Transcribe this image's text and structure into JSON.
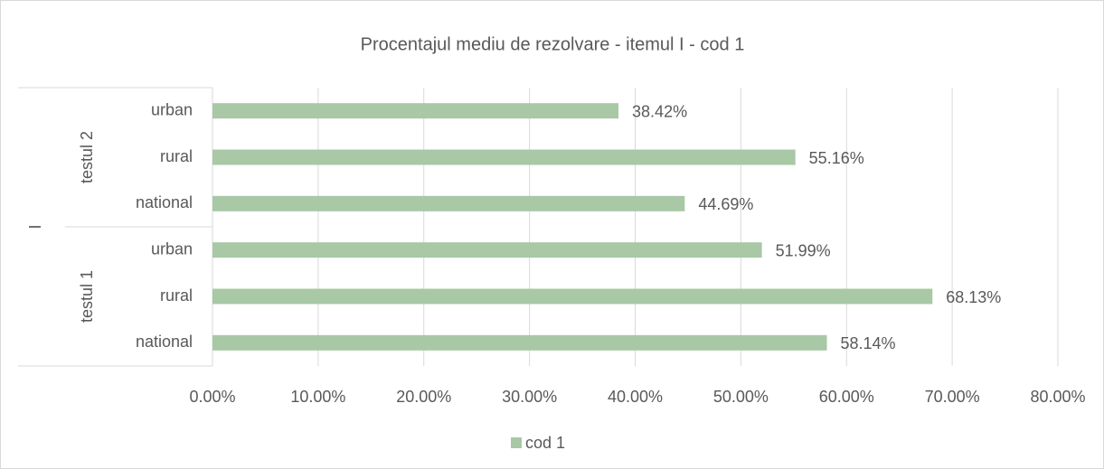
{
  "chart_data": {
    "type": "bar",
    "orientation": "horizontal",
    "title": "Procentajul mediu de rezolvare - itemul I - cod 1",
    "outer_group": "I",
    "groups": [
      {
        "label": "testul 1",
        "start": 0,
        "end": 2
      },
      {
        "label": "testul 2",
        "start": 3,
        "end": 5
      }
    ],
    "categories": [
      "national",
      "rural",
      "urban",
      "national",
      "rural",
      "urban"
    ],
    "series": [
      {
        "name": "cod 1",
        "color": "#a9c8a6",
        "values": [
          58.14,
          68.13,
          51.99,
          44.69,
          55.16,
          38.42
        ],
        "value_labels": [
          "58.14%",
          "68.13%",
          "51.99%",
          "44.69%",
          "55.16%",
          "38.42%"
        ]
      }
    ],
    "xlim": [
      0,
      80
    ],
    "xticks": [
      {
        "value": 0,
        "label": "0.00%"
      },
      {
        "value": 10,
        "label": "10.00%"
      },
      {
        "value": 20,
        "label": "20.00%"
      },
      {
        "value": 30,
        "label": "30.00%"
      },
      {
        "value": 40,
        "label": "40.00%"
      },
      {
        "value": 50,
        "label": "50.00%"
      },
      {
        "value": 60,
        "label": "60.00%"
      },
      {
        "value": 70,
        "label": "70.00%"
      },
      {
        "value": 80,
        "label": "80.00%"
      }
    ],
    "grid": true,
    "legend": "bottom"
  }
}
